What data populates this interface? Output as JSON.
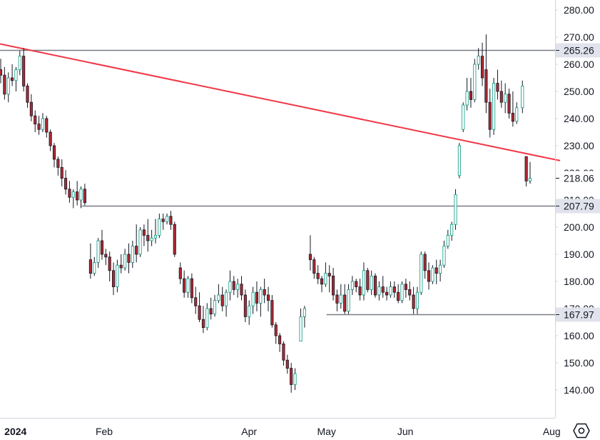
{
  "chart_data": {
    "type": "candlestick",
    "y_axis": {
      "ticks": [
        "140.00",
        "150.00",
        "160.00",
        "170.00",
        "180.00",
        "190.00",
        "200.00",
        "210.00",
        "220.00",
        "230.00",
        "240.00",
        "250.00",
        "260.00",
        "270.00",
        "280.00"
      ],
      "ylim": [
        134,
        284
      ]
    },
    "x_axis": {
      "labels": [
        {
          "text": "2024",
          "t": 4.5,
          "bold": true
        },
        {
          "text": "Feb",
          "t": 36
        },
        {
          "text": "Apr",
          "t": 87.5
        },
        {
          "text": "May",
          "t": 115
        },
        {
          "text": "Jun",
          "t": 143
        },
        {
          "text": "Aug",
          "t": 195
        }
      ],
      "tlim": [
        -1,
        198
      ]
    },
    "horizontal_levels": [
      {
        "value": 265.26,
        "label": "265.26",
        "t_start": -1
      },
      {
        "value": 207.79,
        "label": "207.79",
        "t_start": 28
      },
      {
        "value": 167.97,
        "label": "167.97",
        "t_start": 115
      }
    ],
    "last_price": {
      "value": 218.06,
      "label": "218.06"
    },
    "trendline": {
      "t1": -1,
      "v1": 267.5,
      "t2": 198,
      "v2": 224.5,
      "color": "#f23645"
    },
    "colors": {
      "up": "#089981",
      "down": "#b22833",
      "level": "#787b86",
      "axis": "#d1d4dc",
      "text": "#131722"
    },
    "candles": [
      [
        258,
        262,
        253,
        256
      ],
      [
        256,
        259,
        247,
        249
      ],
      [
        249,
        257,
        246,
        255
      ],
      [
        255,
        260,
        252,
        254
      ],
      [
        254,
        259,
        250,
        258
      ],
      [
        258,
        265,
        256,
        263
      ],
      [
        263,
        266,
        250,
        252
      ],
      [
        252,
        253,
        244,
        246
      ],
      [
        246,
        249,
        239,
        241
      ],
      [
        241,
        243,
        235,
        238
      ],
      [
        238,
        241,
        234,
        236
      ],
      [
        236,
        242,
        235,
        240
      ],
      [
        240,
        241,
        233,
        235
      ],
      [
        235,
        236,
        228,
        230
      ],
      [
        230,
        231,
        222,
        225
      ],
      [
        225,
        226,
        219,
        222
      ],
      [
        222,
        225,
        215,
        218
      ],
      [
        218,
        221,
        212,
        214
      ],
      [
        214,
        217,
        209,
        211
      ],
      [
        211,
        214,
        207,
        213
      ],
      [
        213,
        217,
        208,
        210
      ],
      [
        210,
        215,
        207,
        214
      ],
      [
        214,
        216,
        208,
        209
      ],
      [
        188,
        194,
        181,
        183
      ],
      [
        183,
        189,
        182,
        187
      ],
      [
        187,
        196,
        185,
        195
      ],
      [
        195,
        199,
        188,
        190
      ],
      [
        190,
        192,
        186,
        189
      ],
      [
        189,
        191,
        180,
        184
      ],
      [
        184,
        187,
        175,
        178
      ],
      [
        178,
        188,
        176,
        186
      ],
      [
        186,
        190,
        183,
        185
      ],
      [
        185,
        192,
        184,
        190
      ],
      [
        190,
        194,
        183,
        187
      ],
      [
        187,
        195,
        185,
        193
      ],
      [
        193,
        201,
        187,
        190
      ],
      [
        190,
        200,
        189,
        199
      ],
      [
        199,
        201,
        193,
        197
      ],
      [
        197,
        203,
        191,
        195
      ],
      [
        195,
        199,
        193,
        196
      ],
      [
        196,
        203,
        194,
        197
      ],
      [
        197,
        205,
        196,
        203
      ],
      [
        203,
        205,
        199,
        202
      ],
      [
        202,
        205,
        201,
        204
      ],
      [
        204,
        206,
        199,
        201
      ],
      [
        201,
        202,
        189,
        190
      ],
      [
        185,
        187,
        179,
        181
      ],
      [
        181,
        184,
        174,
        176
      ],
      [
        176,
        182,
        174,
        181
      ],
      [
        181,
        183,
        172,
        174
      ],
      [
        174,
        178,
        168,
        171
      ],
      [
        171,
        176,
        165,
        166
      ],
      [
        166,
        171,
        161,
        163
      ],
      [
        163,
        172,
        162,
        170
      ],
      [
        170,
        174,
        166,
        168
      ],
      [
        168,
        175,
        167,
        173
      ],
      [
        173,
        179,
        172,
        175
      ],
      [
        175,
        178,
        169,
        171
      ],
      [
        171,
        177,
        167,
        176
      ],
      [
        176,
        184,
        173,
        180
      ],
      [
        180,
        182,
        175,
        177
      ],
      [
        177,
        181,
        174,
        179
      ],
      [
        179,
        182,
        173,
        175
      ],
      [
        175,
        177,
        165,
        167
      ],
      [
        167,
        173,
        164,
        171
      ],
      [
        171,
        178,
        168,
        176
      ],
      [
        176,
        180,
        169,
        172
      ],
      [
        172,
        178,
        167,
        177
      ],
      [
        177,
        181,
        172,
        175
      ],
      [
        175,
        178,
        169,
        173
      ],
      [
        173,
        175,
        163,
        164
      ],
      [
        164,
        165,
        157,
        160
      ],
      [
        160,
        161,
        154,
        157
      ],
      [
        157,
        158,
        149,
        151
      ],
      [
        151,
        153,
        146,
        148
      ],
      [
        148,
        150,
        139,
        142
      ],
      [
        142,
        148,
        140,
        146
      ],
      [
        158,
        170,
        158,
        167
      ],
      [
        167,
        171,
        163,
        170
      ],
      [
        190,
        197,
        184,
        188
      ],
      [
        188,
        189,
        181,
        183
      ],
      [
        183,
        186,
        179,
        181
      ],
      [
        181,
        182,
        176,
        179
      ],
      [
        179,
        187,
        178,
        183
      ],
      [
        183,
        186,
        176,
        182
      ],
      [
        182,
        185,
        173,
        175
      ],
      [
        175,
        177,
        169,
        172
      ],
      [
        172,
        179,
        170,
        175
      ],
      [
        175,
        179,
        168,
        169
      ],
      [
        169,
        179,
        168,
        177
      ],
      [
        177,
        182,
        175,
        180
      ],
      [
        180,
        181,
        176,
        178
      ],
      [
        178,
        181,
        173,
        175
      ],
      [
        175,
        187,
        173,
        184
      ],
      [
        184,
        185,
        176,
        177
      ],
      [
        177,
        184,
        175,
        182
      ],
      [
        182,
        183,
        174,
        175
      ],
      [
        175,
        180,
        173,
        178
      ],
      [
        178,
        182,
        174,
        176
      ],
      [
        176,
        178,
        173,
        175
      ],
      [
        175,
        180,
        174,
        178
      ],
      [
        178,
        180,
        174,
        176
      ],
      [
        176,
        179,
        172,
        173
      ],
      [
        173,
        180,
        172,
        179
      ],
      [
        179,
        181,
        174,
        177
      ],
      [
        177,
        180,
        173,
        175
      ],
      [
        175,
        178,
        168,
        170
      ],
      [
        170,
        178,
        168,
        176
      ],
      [
        176,
        191,
        175,
        190
      ],
      [
        190,
        191,
        181,
        184
      ],
      [
        184,
        187,
        177,
        180
      ],
      [
        180,
        186,
        179,
        185
      ],
      [
        185,
        188,
        179,
        183
      ],
      [
        183,
        188,
        180,
        186
      ],
      [
        186,
        195,
        185,
        193
      ],
      [
        193,
        199,
        192,
        197
      ],
      [
        197,
        202,
        195,
        201
      ],
      [
        201,
        214,
        199,
        212
      ],
      [
        219,
        231,
        218,
        230
      ],
      [
        236,
        246,
        235,
        245
      ],
      [
        245,
        255,
        243,
        250
      ],
      [
        250,
        255,
        244,
        247
      ],
      [
        247,
        262,
        246,
        260
      ],
      [
        260,
        266,
        258,
        263
      ],
      [
        263,
        268,
        252,
        255
      ],
      [
        258,
        271,
        242,
        246
      ],
      [
        246,
        251,
        233,
        236
      ],
      [
        236,
        255,
        234,
        253
      ],
      [
        253,
        258,
        247,
        250
      ],
      [
        250,
        254,
        244,
        246
      ],
      [
        246,
        253,
        242,
        249
      ],
      [
        249,
        251,
        240,
        242
      ],
      [
        242,
        250,
        237,
        239
      ],
      [
        239,
        246,
        238,
        244
      ],
      [
        244,
        254,
        242,
        252
      ],
      [
        226,
        226,
        215,
        217
      ],
      [
        217,
        224,
        216,
        218
      ]
    ]
  },
  "settings_icon": "gear-hexagon-icon"
}
